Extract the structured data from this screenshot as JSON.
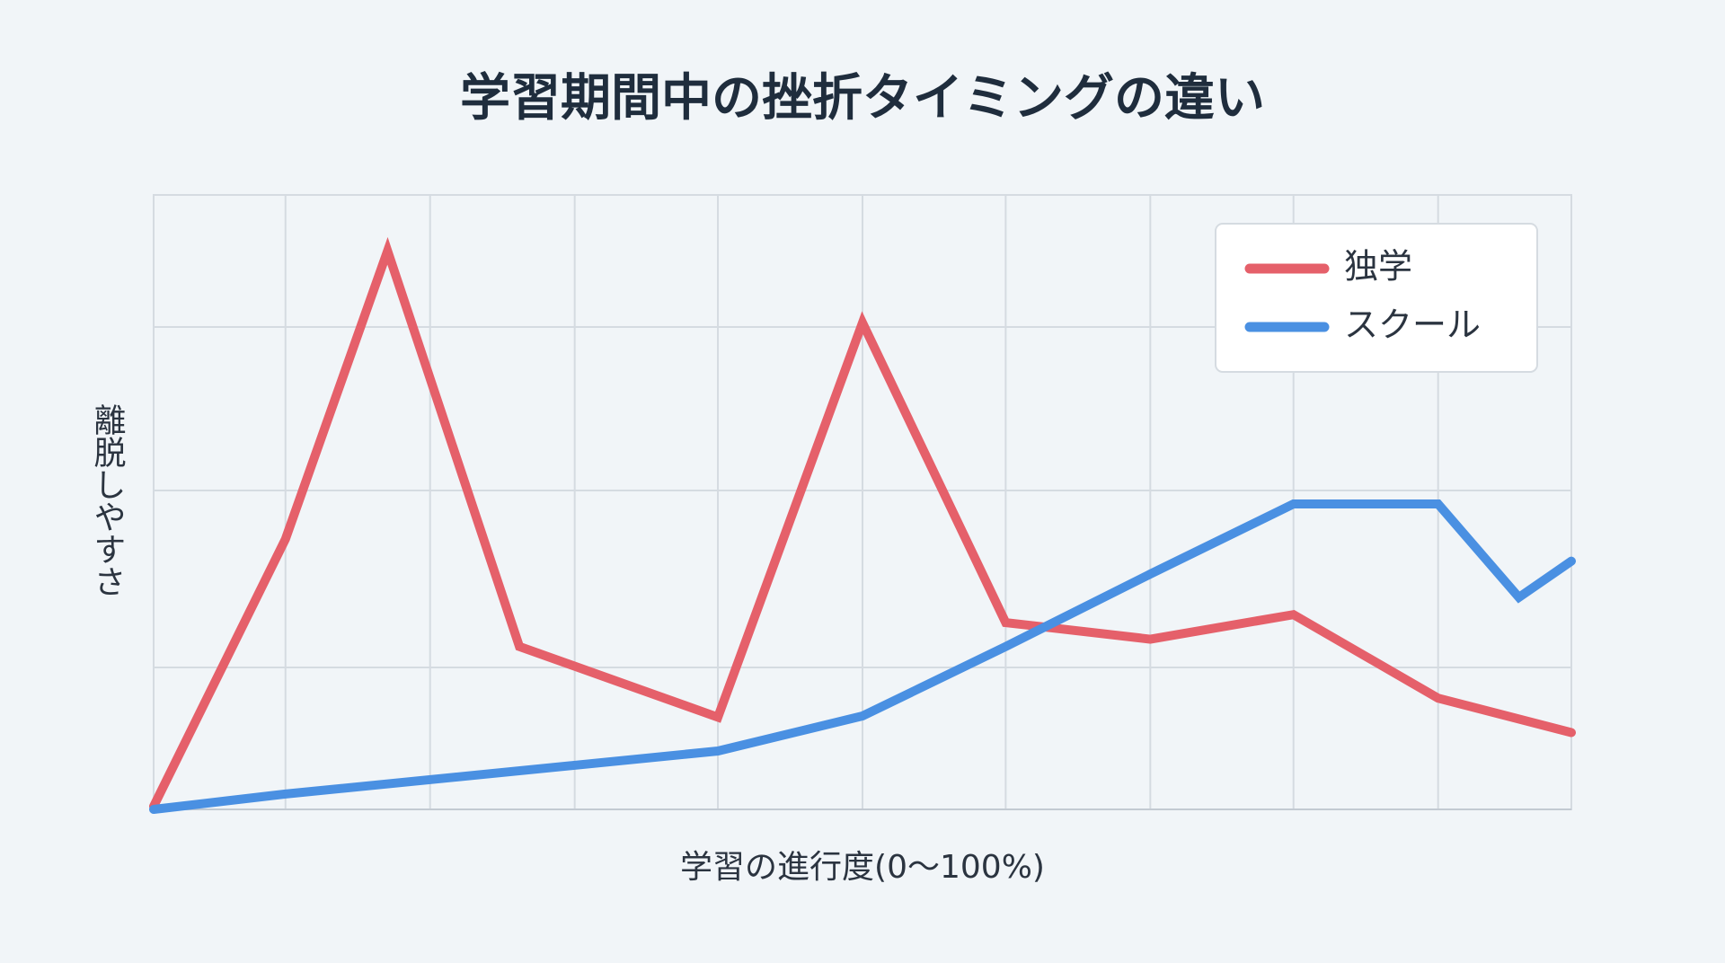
{
  "chart_data": {
    "type": "line",
    "title": "学習期間中の挫折タイミングの違い",
    "x_label": "学習の進行度(0〜100%)",
    "y_label": "離脱しやすさ",
    "xlim": [
      0,
      100
    ],
    "ylim": [
      0,
      100
    ],
    "xticks": [
      0,
      9.3,
      19.5,
      29.7,
      39.8,
      50,
      60.1,
      70.3,
      80.4,
      90.6,
      100
    ],
    "yticks": [
      23.1,
      51.9,
      78.5,
      100
    ],
    "grid": true,
    "legend": "upper right",
    "series": [
      {
        "name": "独学",
        "color": "#e5606a",
        "x": [
          0,
          9.3,
          16.5,
          25.8,
          39.8,
          50,
          60.1,
          70.3,
          80.4,
          90.6,
          100
        ],
        "values": [
          0.5,
          44.0,
          90.9,
          26.5,
          15.0,
          79.2,
          30.4,
          27.7,
          31.7,
          18.1,
          12.5
        ]
      },
      {
        "name": "スクール",
        "color": "#4a90e2",
        "x": [
          0,
          9.3,
          39.8,
          50,
          60.1,
          70.3,
          80.4,
          90.6,
          96.3,
          100
        ],
        "values": [
          0,
          2.5,
          9.5,
          15.2,
          26.5,
          38.3,
          49.7,
          49.7,
          34.5,
          40.4
        ]
      }
    ]
  }
}
